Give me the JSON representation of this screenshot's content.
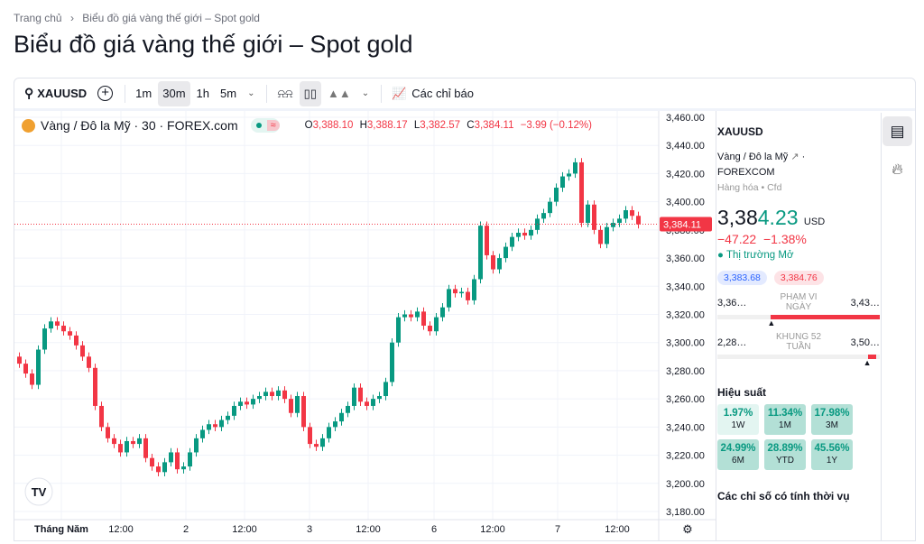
{
  "breadcrumb": [
    "Trang chủ",
    "›",
    "Biểu đồ giá vàng thế giới – Spot gold"
  ],
  "page_title": "Biểu đồ giá vàng thế giới – Spot gold",
  "toolbar": {
    "symbol": "XAUUSD",
    "intervals": [
      "1m",
      "30m",
      "1h",
      "5m"
    ],
    "active_interval": "30m",
    "indicators_label": "Các chỉ báo"
  },
  "legend": {
    "title": "Vàng / Đô la Mỹ · 30 · FOREX.com",
    "o_label": "O",
    "o": "3,388.10",
    "h_label": "H",
    "h": "3,388.17",
    "l_label": "L",
    "l": "3,382.57",
    "c_label": "C",
    "c": "3,384.11",
    "change": "−3.99 (−0.12%)"
  },
  "panel": {
    "symbol": "XAUUSD",
    "name": "Vàng / Đô la Mỹ",
    "exchange": "FOREXCOM",
    "type": "Hàng hóa",
    "sub": "Cfd",
    "price_main": "3,38",
    "price_tail": "4.23",
    "currency": "USD",
    "change": "−47.22",
    "change_pct": "−1.38%",
    "market_status": "Thị trường Mở",
    "bid": "3,383.68",
    "ask": "3,384.76",
    "day_low": "3,36…",
    "day_label": "PHẠM VI NGÀY",
    "day_high": "3,43…",
    "day_position": 0.33,
    "w52_low": "2,28…",
    "w52_label": "KHUNG 52 TUẦN",
    "w52_high": "3,50…",
    "w52_position": 0.92,
    "perf_title": "Hiệu suất",
    "perf": [
      {
        "v": "1.97%",
        "l": "1W"
      },
      {
        "v": "11.34%",
        "l": "1M"
      },
      {
        "v": "17.98%",
        "l": "3M"
      },
      {
        "v": "24.99%",
        "l": "6M"
      },
      {
        "v": "28.89%",
        "l": "YTD"
      },
      {
        "v": "45.56%",
        "l": "1Y"
      }
    ],
    "seasonal": "Các chỉ số có tính thời vụ"
  },
  "colors": {
    "up": "#089981",
    "down": "#f23645",
    "accent": "#2962ff"
  },
  "chart_data": {
    "type": "candlestick",
    "ylim": [
      3180,
      3460
    ],
    "y_ticks": [
      "3,460.00",
      "3,440.00",
      "3,420.00",
      "3,400.00",
      "3,380.00",
      "3,360.00",
      "3,340.00",
      "3,320.00",
      "3,300.00",
      "3,280.00",
      "3,260.00",
      "3,240.00",
      "3,220.00",
      "3,200.00",
      "3,180.00"
    ],
    "x_ticks": [
      "Tháng Năm",
      "12:00",
      "2",
      "12:00",
      "3",
      "12:00",
      "6",
      "12:00",
      "7",
      "12:00"
    ],
    "last_price": 3384.11,
    "last_price_label": "3,384.11",
    "first_open": 3290,
    "close": [
      3285,
      3278,
      3270,
      3295,
      3310,
      3315,
      3312,
      3308,
      3305,
      3298,
      3290,
      3282,
      3255,
      3240,
      3232,
      3228,
      3222,
      3230,
      3228,
      3232,
      3218,
      3212,
      3208,
      3215,
      3222,
      3210,
      3212,
      3222,
      3232,
      3238,
      3242,
      3240,
      3245,
      3248,
      3255,
      3258,
      3256,
      3260,
      3262,
      3265,
      3262,
      3266,
      3260,
      3250,
      3262,
      3240,
      3228,
      3226,
      3232,
      3240,
      3244,
      3250,
      3255,
      3268,
      3258,
      3255,
      3260,
      3262,
      3272,
      3300,
      3318,
      3320,
      3318,
      3322,
      3312,
      3308,
      3318,
      3325,
      3338,
      3335,
      3336,
      3330,
      3345,
      3383,
      3362,
      3352,
      3360,
      3368,
      3375,
      3378,
      3376,
      3380,
      3388,
      3392,
      3400,
      3410,
      3418,
      3420,
      3428,
      3385,
      3398,
      3380,
      3370,
      3382,
      3385,
      3388,
      3394,
      3390,
      3384
    ]
  }
}
